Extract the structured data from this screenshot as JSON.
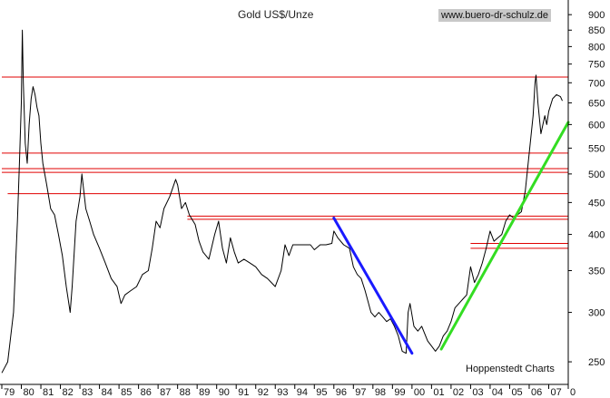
{
  "chart_data": {
    "type": "line",
    "title": "Gold US$/Unze",
    "source_url": "www.buero-dr-schulz.de",
    "credit": "Hoppenstedt Charts",
    "y_scale": "log",
    "ylim": [
      230,
      950
    ],
    "xlim": [
      1979.0,
      2008.0
    ],
    "y_ticks": [
      {
        "value": 900,
        "label": "900"
      },
      {
        "value": 850,
        "label": "850"
      },
      {
        "value": 800,
        "label": "800"
      },
      {
        "value": 750,
        "label": "750"
      },
      {
        "value": 700,
        "label": "700"
      },
      {
        "value": 650,
        "label": "650"
      },
      {
        "value": 600,
        "label": "600"
      },
      {
        "value": 550,
        "label": "550"
      },
      {
        "value": 500,
        "label": "500"
      },
      {
        "value": 450,
        "label": "450"
      },
      {
        "value": 400,
        "label": "400"
      },
      {
        "value": 350,
        "label": "350"
      },
      {
        "value": 300,
        "label": "300"
      },
      {
        "value": 250,
        "label": "250"
      }
    ],
    "x_ticks": [
      {
        "value": 1979,
        "label": "79"
      },
      {
        "value": 1980,
        "label": "80"
      },
      {
        "value": 1981,
        "label": "81"
      },
      {
        "value": 1982,
        "label": "82"
      },
      {
        "value": 1983,
        "label": "83"
      },
      {
        "value": 1984,
        "label": "84"
      },
      {
        "value": 1985,
        "label": "85"
      },
      {
        "value": 1986,
        "label": "86"
      },
      {
        "value": 1987,
        "label": "87"
      },
      {
        "value": 1988,
        "label": "88"
      },
      {
        "value": 1989,
        "label": "89"
      },
      {
        "value": 1990,
        "label": "90"
      },
      {
        "value": 1991,
        "label": "91"
      },
      {
        "value": 1992,
        "label": "92"
      },
      {
        "value": 1993,
        "label": "93"
      },
      {
        "value": 1994,
        "label": "94"
      },
      {
        "value": 1995,
        "label": "95"
      },
      {
        "value": 1996,
        "label": "96"
      },
      {
        "value": 1997,
        "label": "97"
      },
      {
        "value": 1998,
        "label": "98"
      },
      {
        "value": 1999,
        "label": "99"
      },
      {
        "value": 2000,
        "label": "00"
      },
      {
        "value": 2001,
        "label": "01"
      },
      {
        "value": 2002,
        "label": "02"
      },
      {
        "value": 2003,
        "label": "03"
      },
      {
        "value": 2004,
        "label": "04"
      },
      {
        "value": 2005,
        "label": "05"
      },
      {
        "value": 2006,
        "label": "06"
      },
      {
        "value": 2007,
        "label": "07"
      },
      {
        "value": 2008,
        "label": "0"
      }
    ],
    "series": [
      {
        "color": "#000000",
        "points": [
          [
            1979.0,
            240
          ],
          [
            1979.3,
            250
          ],
          [
            1979.6,
            300
          ],
          [
            1979.8,
            420
          ],
          [
            1979.9,
            520
          ],
          [
            1980.0,
            650
          ],
          [
            1980.05,
            850
          ],
          [
            1980.1,
            700
          ],
          [
            1980.2,
            560
          ],
          [
            1980.3,
            520
          ],
          [
            1980.4,
            600
          ],
          [
            1980.5,
            660
          ],
          [
            1980.6,
            690
          ],
          [
            1980.7,
            670
          ],
          [
            1980.8,
            640
          ],
          [
            1980.9,
            620
          ],
          [
            1981.0,
            560
          ],
          [
            1981.1,
            520
          ],
          [
            1981.3,
            480
          ],
          [
            1981.5,
            440
          ],
          [
            1981.7,
            430
          ],
          [
            1981.9,
            400
          ],
          [
            1982.1,
            370
          ],
          [
            1982.3,
            330
          ],
          [
            1982.5,
            300
          ],
          [
            1982.6,
            330
          ],
          [
            1982.8,
            420
          ],
          [
            1983.0,
            460
          ],
          [
            1983.1,
            500
          ],
          [
            1983.3,
            440
          ],
          [
            1983.5,
            420
          ],
          [
            1983.7,
            400
          ],
          [
            1984.0,
            380
          ],
          [
            1984.3,
            360
          ],
          [
            1984.6,
            340
          ],
          [
            1984.9,
            330
          ],
          [
            1985.1,
            310
          ],
          [
            1985.3,
            320
          ],
          [
            1985.6,
            325
          ],
          [
            1985.9,
            330
          ],
          [
            1986.2,
            345
          ],
          [
            1986.5,
            350
          ],
          [
            1986.7,
            380
          ],
          [
            1986.9,
            420
          ],
          [
            1987.1,
            410
          ],
          [
            1987.3,
            440
          ],
          [
            1987.6,
            460
          ],
          [
            1987.9,
            490
          ],
          [
            1988.0,
            480
          ],
          [
            1988.2,
            440
          ],
          [
            1988.4,
            450
          ],
          [
            1988.6,
            430
          ],
          [
            1988.9,
            415
          ],
          [
            1989.1,
            390
          ],
          [
            1989.3,
            375
          ],
          [
            1989.6,
            365
          ],
          [
            1989.9,
            400
          ],
          [
            1990.1,
            420
          ],
          [
            1990.3,
            380
          ],
          [
            1990.5,
            360
          ],
          [
            1990.7,
            395
          ],
          [
            1990.9,
            375
          ],
          [
            1991.1,
            360
          ],
          [
            1991.4,
            365
          ],
          [
            1991.7,
            360
          ],
          [
            1992.0,
            355
          ],
          [
            1992.3,
            345
          ],
          [
            1992.6,
            340
          ],
          [
            1992.8,
            335
          ],
          [
            1993.0,
            330
          ],
          [
            1993.3,
            350
          ],
          [
            1993.5,
            385
          ],
          [
            1993.7,
            370
          ],
          [
            1993.9,
            385
          ],
          [
            1994.2,
            385
          ],
          [
            1994.5,
            385
          ],
          [
            1994.8,
            385
          ],
          [
            1995.0,
            378
          ],
          [
            1995.3,
            385
          ],
          [
            1995.6,
            385
          ],
          [
            1995.9,
            387
          ],
          [
            1996.0,
            405
          ],
          [
            1996.2,
            395
          ],
          [
            1996.5,
            385
          ],
          [
            1996.8,
            380
          ],
          [
            1997.0,
            355
          ],
          [
            1997.2,
            345
          ],
          [
            1997.4,
            340
          ],
          [
            1997.6,
            325
          ],
          [
            1997.9,
            300
          ],
          [
            1998.1,
            295
          ],
          [
            1998.3,
            300
          ],
          [
            1998.5,
            295
          ],
          [
            1998.7,
            290
          ],
          [
            1998.9,
            293
          ],
          [
            1999.1,
            285
          ],
          [
            1999.3,
            275
          ],
          [
            1999.5,
            260
          ],
          [
            1999.7,
            258
          ],
          [
            1999.8,
            300
          ],
          [
            1999.9,
            310
          ],
          [
            2000.1,
            285
          ],
          [
            2000.3,
            280
          ],
          [
            2000.5,
            285
          ],
          [
            2000.8,
            270
          ],
          [
            2001.0,
            265
          ],
          [
            2001.2,
            260
          ],
          [
            2001.4,
            265
          ],
          [
            2001.6,
            275
          ],
          [
            2001.8,
            280
          ],
          [
            2002.0,
            290
          ],
          [
            2002.2,
            305
          ],
          [
            2002.4,
            310
          ],
          [
            2002.6,
            315
          ],
          [
            2002.8,
            320
          ],
          [
            2003.0,
            355
          ],
          [
            2003.2,
            335
          ],
          [
            2003.4,
            345
          ],
          [
            2003.6,
            360
          ],
          [
            2003.8,
            380
          ],
          [
            2004.0,
            405
          ],
          [
            2004.2,
            390
          ],
          [
            2004.4,
            395
          ],
          [
            2004.6,
            400
          ],
          [
            2004.8,
            420
          ],
          [
            2005.0,
            430
          ],
          [
            2005.2,
            425
          ],
          [
            2005.4,
            430
          ],
          [
            2005.6,
            435
          ],
          [
            2005.8,
            470
          ],
          [
            2006.0,
            540
          ],
          [
            2006.2,
            620
          ],
          [
            2006.3,
            700
          ],
          [
            2006.35,
            720
          ],
          [
            2006.45,
            650
          ],
          [
            2006.6,
            580
          ],
          [
            2006.8,
            620
          ],
          [
            2006.9,
            600
          ],
          [
            2007.0,
            630
          ],
          [
            2007.2,
            660
          ],
          [
            2007.4,
            670
          ],
          [
            2007.6,
            665
          ],
          [
            2007.7,
            655
          ]
        ]
      }
    ],
    "horizontal_lines": [
      {
        "value": 715,
        "from": 1979.0,
        "to": 2008.0
      },
      {
        "value": 540,
        "from": 1979.0,
        "to": 2008.0
      },
      {
        "value": 510,
        "from": 1979.0,
        "to": 2008.0
      },
      {
        "value": 503,
        "from": 1979.0,
        "to": 2008.0
      },
      {
        "value": 465,
        "from": 1979.3,
        "to": 2008.0
      },
      {
        "value": 428,
        "from": 1988.5,
        "to": 2008.0
      },
      {
        "value": 423,
        "from": 1988.5,
        "to": 2008.0
      },
      {
        "value": 387,
        "from": 2003.0,
        "to": 2008.0
      },
      {
        "value": 380,
        "from": 2003.0,
        "to": 2008.0
      }
    ],
    "trend_lines": [
      {
        "color": "#1a1aff",
        "from": [
          1996.0,
          425
        ],
        "to": [
          2000.0,
          258
        ]
      },
      {
        "color": "#33dd22",
        "from": [
          2001.5,
          262
        ],
        "to": [
          2008.0,
          605
        ]
      }
    ],
    "colors": {
      "price": "#000000",
      "support_resistance": "#e00000",
      "downtrend": "#1a1aff",
      "uptrend": "#33dd22"
    }
  }
}
